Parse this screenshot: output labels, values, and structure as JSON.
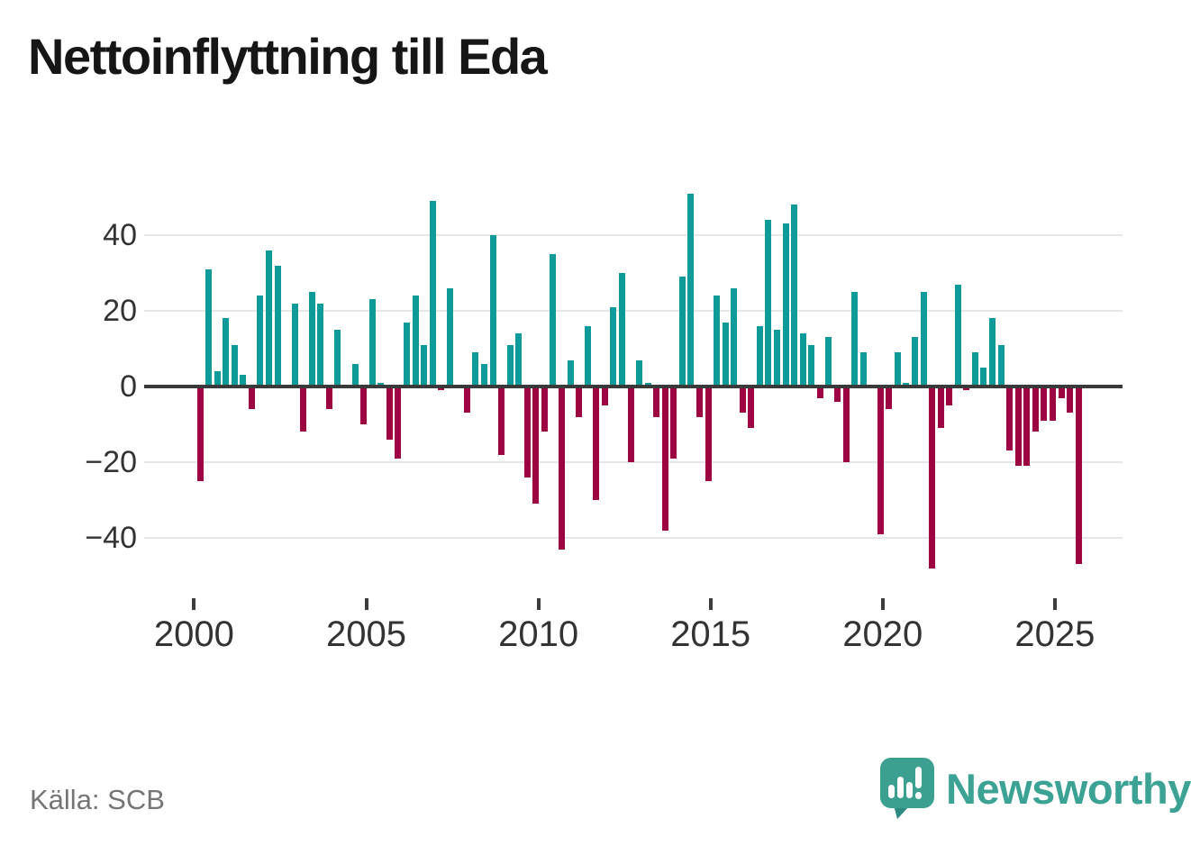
{
  "title": "Nettoinflyttning till Eda",
  "source": "Källa: SCB",
  "branding": {
    "name": "Newsworthy",
    "icon": "newsworthy-speech-bubble-chart-icon",
    "color": "#3ba294"
  },
  "colors": {
    "positive_bar": "#0f9b99",
    "negative_bar": "#9c0541",
    "gridline": "#e7e7e7",
    "zero_line": "#3a3a3a",
    "axis_text": "#333333",
    "title_text": "#161616",
    "source_text": "#757575"
  },
  "y_axis": {
    "ticks": [
      {
        "label": "40",
        "value": 40
      },
      {
        "label": "20",
        "value": 20
      },
      {
        "label": "0",
        "value": 0
      },
      {
        "label": "−20",
        "value": -20
      },
      {
        "label": "−40",
        "value": -40
      }
    ]
  },
  "x_axis": {
    "ticks": [
      "2000",
      "2005",
      "2010",
      "2015",
      "2020",
      "2025"
    ]
  },
  "chart_data": {
    "type": "bar",
    "title": "Nettoinflyttning till Eda",
    "xlabel": "",
    "ylabel": "",
    "x_unit": "quarter",
    "start_period": "2000-Q1",
    "end_period": "2025-Q3",
    "ylim": [
      -50,
      55
    ],
    "y_gridlines": [
      40,
      20,
      0,
      -20,
      -40
    ],
    "grid": "horizontal",
    "legend": "none",
    "positive_color": "#0f9b99",
    "negative_color": "#9c0541",
    "values": [
      -25,
      31,
      4,
      18,
      11,
      3,
      -6,
      24,
      36,
      32,
      0,
      22,
      -12,
      25,
      22,
      -6,
      15,
      0,
      6,
      -10,
      23,
      1,
      -14,
      -19,
      17,
      24,
      11,
      49,
      -1,
      26,
      0,
      -7,
      9,
      6,
      40,
      -18,
      11,
      14,
      -24,
      -31,
      -12,
      35,
      -43,
      7,
      -8,
      16,
      -30,
      -5,
      21,
      30,
      -20,
      7,
      1,
      -8,
      -38,
      -19,
      29,
      51,
      -8,
      -25,
      24,
      17,
      26,
      -7,
      -11,
      16,
      44,
      15,
      43,
      48,
      14,
      11,
      -3,
      13,
      -4,
      -20,
      25,
      9,
      0,
      -39,
      -6,
      9,
      1,
      13,
      25,
      -48,
      -11,
      -5,
      27,
      -1,
      9,
      5,
      18,
      11,
      -17,
      -21,
      -21,
      -12,
      -9,
      -9,
      -3,
      -7,
      -47
    ]
  }
}
